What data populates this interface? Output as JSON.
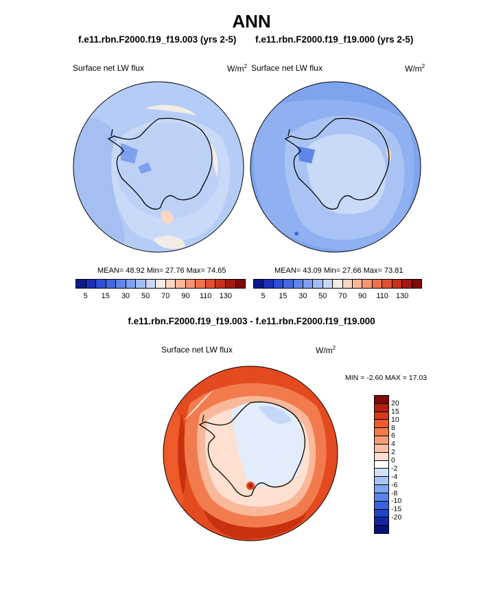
{
  "title": "ANN",
  "panel_left": {
    "case": "f.e11.rbn.F2000.f19_f19.003 (yrs 2-5)",
    "variable": "Surface net LW flux",
    "units_base": "W/m",
    "units_exp": "2",
    "stats": "MEAN=  48.92  Min=  27.76  Max=  74.65"
  },
  "panel_right": {
    "case": "f.e11.rbn.F2000.f19_f19.000 (yrs 2-5)",
    "variable": "Surface net LW flux",
    "units_base": "W/m",
    "units_exp": "2",
    "stats": "MEAN=  43.09  Min=  27.66  Max=  73.81"
  },
  "panel_diff": {
    "case": "f.e11.rbn.F2000.f19_f19.003 - f.e11.rbn.F2000.f19_f19.000",
    "variable": "Surface net LW flux",
    "units_base": "W/m",
    "units_exp": "2",
    "stats": "MIN =  -2.60 MAX =  17.03"
  },
  "colorbar_top": {
    "colors": [
      "#0a1a8c",
      "#1c2fb5",
      "#2e4fd6",
      "#4468e0",
      "#5f86e8",
      "#7ea0ee",
      "#a3bef4",
      "#c9d8f8",
      "#f2ece6",
      "#fcd6c2",
      "#f9b89a",
      "#f59573",
      "#ef744e",
      "#e2512e",
      "#c8321a",
      "#a3190d",
      "#7f0a06"
    ],
    "tick_labels": [
      "5",
      "15",
      "30",
      "50",
      "70",
      "90",
      "110",
      "130"
    ]
  },
  "colorbar_diff": {
    "colors": [
      "#7f0a06",
      "#b3200f",
      "#d8381b",
      "#ee5a2c",
      "#f27b4d",
      "#f59c77",
      "#f9bea3",
      "#fde0d0",
      "#ffffff",
      "#d3e2fa",
      "#a9c4f4",
      "#7ea4ee",
      "#5b84e8",
      "#3a64df",
      "#2244c8",
      "#1228a4",
      "#05117a"
    ],
    "tick_labels": [
      "20",
      "15",
      "10",
      "8",
      "6",
      "4",
      "2",
      "0",
      "-2",
      "-4",
      "-6",
      "-8",
      "-10",
      "-15",
      "-20"
    ]
  }
}
